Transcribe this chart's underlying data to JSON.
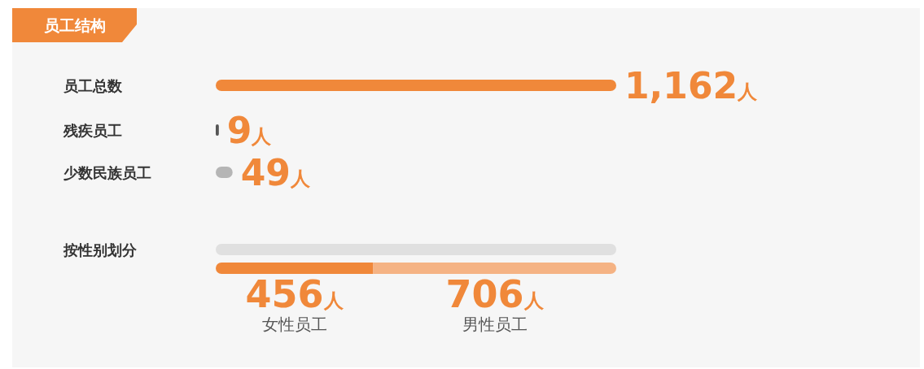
{
  "chart_data": [
    {
      "type": "bar",
      "title": "员工结构",
      "orientation": "horizontal",
      "categories": [
        "员工总数",
        "残疾员工",
        "少数民族员工"
      ],
      "values": [
        1162,
        9,
        49
      ],
      "colors": [
        "#f0883a",
        "#555555",
        "#b5b5b5"
      ],
      "value_labels": [
        "1,162人",
        "9人",
        "49人"
      ]
    },
    {
      "type": "bar",
      "orientation": "horizontal",
      "stacked": true,
      "categories": [
        "按性别划分"
      ],
      "series": [
        {
          "name": "女性员工",
          "color": "#f0883a",
          "values": [
            456
          ],
          "value_labels": [
            "456人"
          ]
        },
        {
          "name": "男性员工",
          "color": "#f5b384",
          "values": [
            706
          ],
          "value_labels": [
            "706人"
          ]
        }
      ]
    }
  ]
}
